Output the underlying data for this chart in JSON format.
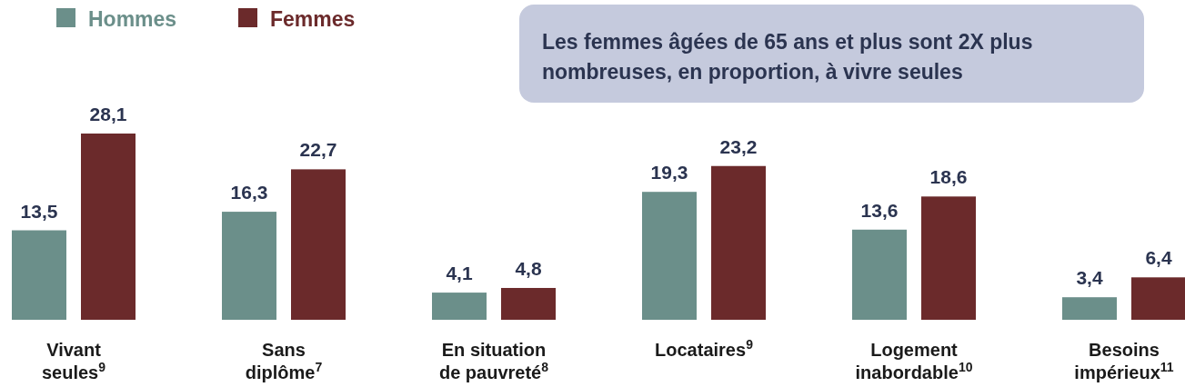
{
  "chart_data": {
    "type": "bar",
    "categories": [
      "Vivant\nseules$^{9}$",
      "Sans\ndiplôme$^{7}$",
      "En situation\nde pauvreté$^{8}$",
      "Locataires$^{9}$",
      "Logement\ninabordable$^{10}$",
      "Besoins\nimpérieux$^{11}$"
    ],
    "series": [
      {
        "name": "Hommes",
        "color": "#6b8f8a",
        "values": [
          13.5,
          16.3,
          4.1,
          19.3,
          13.6,
          3.4
        ],
        "value_labels": [
          "13,5",
          "16,3",
          "4,1",
          "19,3",
          "13,6",
          "3,4"
        ]
      },
      {
        "name": "Femmes",
        "color": "#6b2a2b",
        "values": [
          28.1,
          22.7,
          4.8,
          23.2,
          18.6,
          6.4
        ],
        "value_labels": [
          "28,1",
          "22,7",
          "4,8",
          "23,2",
          "18,6",
          "6,4"
        ]
      }
    ],
    "legend": "top left",
    "annotations": [
      "Les femmes âgées de 65 ans et plus sont 2X plus nombreuses, en proportion, à vivre seules"
    ]
  }
}
